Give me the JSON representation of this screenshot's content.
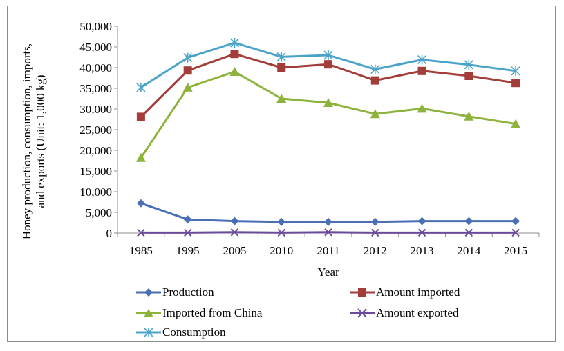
{
  "chart_data": {
    "type": "line",
    "title": "",
    "xlabel": "Year",
    "ylabel_lines": [
      "Honey production, consumption, imports,",
      "and exports (Unit: 1,000 kg)"
    ],
    "categories": [
      "1985",
      "1995",
      "2005",
      "2010",
      "2011",
      "2012",
      "2013",
      "2014",
      "2015"
    ],
    "ylim": [
      0,
      50000
    ],
    "yticks": [
      0,
      5000,
      10000,
      15000,
      20000,
      25000,
      30000,
      35000,
      40000,
      45000,
      50000
    ],
    "ytick_labels": [
      "0",
      "5,000",
      "10,000",
      "15,000",
      "20,000",
      "25,000",
      "30,000",
      "35,000",
      "40,000",
      "45,000",
      "50,000"
    ],
    "grid": false,
    "legend_position": "bottom",
    "series": [
      {
        "name": "Production",
        "color": "#4a6fb5",
        "marker": "diamond",
        "values": [
          7200,
          3300,
          2900,
          2700,
          2700,
          2700,
          2900,
          2900,
          2900
        ]
      },
      {
        "name": "Amount imported",
        "color": "#a33d3a",
        "marker": "square",
        "values": [
          28100,
          39300,
          43300,
          40000,
          40800,
          36900,
          39200,
          38000,
          36300
        ]
      },
      {
        "name": "Imported from China",
        "color": "#8db33c",
        "marker": "triangle",
        "values": [
          18200,
          35200,
          39000,
          32500,
          31500,
          28800,
          30100,
          28200,
          26400
        ]
      },
      {
        "name": "Amount exported",
        "color": "#6b4c9a",
        "marker": "x",
        "values": [
          100,
          100,
          200,
          100,
          200,
          100,
          100,
          100,
          100
        ]
      },
      {
        "name": "Consumption",
        "color": "#4aa3c8",
        "marker": "asterisk",
        "values": [
          35200,
          42400,
          46000,
          42600,
          43000,
          39600,
          41900,
          40700,
          39200
        ]
      }
    ]
  }
}
